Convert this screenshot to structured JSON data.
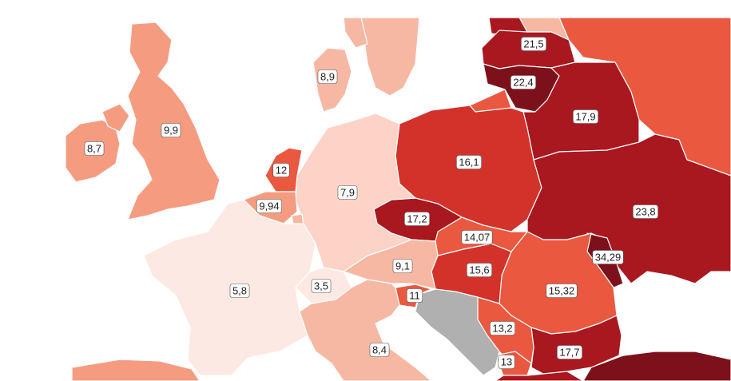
{
  "legend_colors": {
    "lightest": "#fce6e0",
    "light": "#f7b8a3",
    "medium_light": "#f59c80",
    "medium": "#e9583f",
    "strong": "#d3322b",
    "dark": "#a9171f",
    "darkest": "#7d111b",
    "no_data": "#b0b0b0"
  },
  "regions": [
    {
      "id": "ireland",
      "value": "8,7"
    },
    {
      "id": "united-kingdom",
      "value": "9,9"
    },
    {
      "id": "denmark",
      "value": "8,9"
    },
    {
      "id": "netherlands",
      "value": "12"
    },
    {
      "id": "belgium",
      "value": "9,94"
    },
    {
      "id": "germany",
      "value": "7,9"
    },
    {
      "id": "france",
      "value": "5,8"
    },
    {
      "id": "switzerland",
      "value": "3,5"
    },
    {
      "id": "austria",
      "value": "9,1"
    },
    {
      "id": "slovenia",
      "value": "11"
    },
    {
      "id": "italy",
      "value": "8,4"
    },
    {
      "id": "czechia",
      "value": "17,2"
    },
    {
      "id": "poland",
      "value": "16,1"
    },
    {
      "id": "slovakia",
      "value": "14,07"
    },
    {
      "id": "hungary",
      "value": "15,6"
    },
    {
      "id": "romania",
      "value": "15,32"
    },
    {
      "id": "serbia",
      "value": "13,2"
    },
    {
      "id": "north-macedonia",
      "value": "13"
    },
    {
      "id": "bulgaria",
      "value": "17,7"
    },
    {
      "id": "latvia",
      "value": "21,5"
    },
    {
      "id": "lithuania",
      "value": "22,4"
    },
    {
      "id": "belarus",
      "value": "17,9"
    },
    {
      "id": "ukraine",
      "value": "23,8"
    },
    {
      "id": "moldova",
      "value": "34,29"
    }
  ]
}
